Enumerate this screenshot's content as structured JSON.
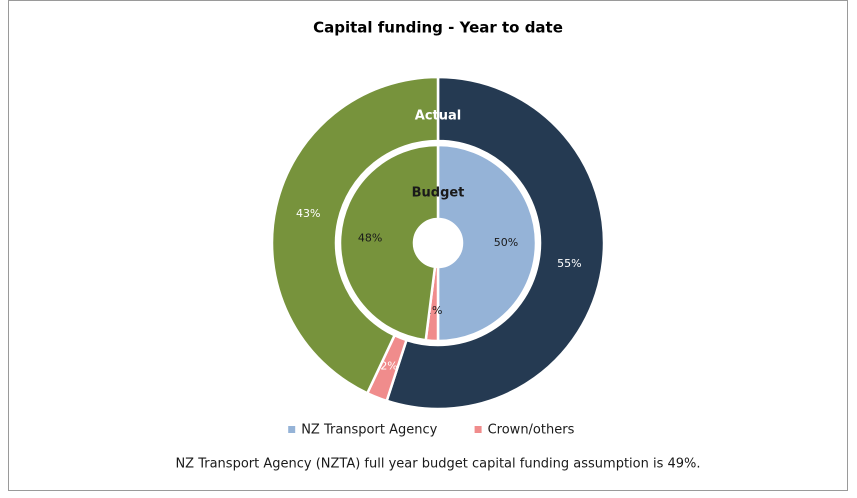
{
  "chart_data": {
    "type": "donut",
    "title": "Capital funding - Year to date",
    "categories": [
      "NZ Transport Agency",
      "Crown/others",
      null
    ],
    "series": [
      {
        "name": "Actual",
        "values": [
          55,
          2,
          43
        ],
        "value_labels": [
          "55%",
          "2%",
          "43%"
        ],
        "colors": [
          "#253a52",
          "#f08c8c",
          "#77933c"
        ],
        "label_color": "#ffffff"
      },
      {
        "name": "Budget",
        "values": [
          50,
          2,
          48
        ],
        "value_labels": [
          "50%",
          "2%",
          "48%"
        ],
        "colors": [
          "#95b3d7",
          "#f08c8c",
          "#77933c"
        ],
        "label_color": "#1a1a1a"
      }
    ],
    "legend_colors": [
      "#95b3d7",
      "#f08c8c"
    ],
    "legend": "bottom",
    "note": "NZ Transport Agency (NZTA) full year budget capital funding assumption is 49%."
  }
}
